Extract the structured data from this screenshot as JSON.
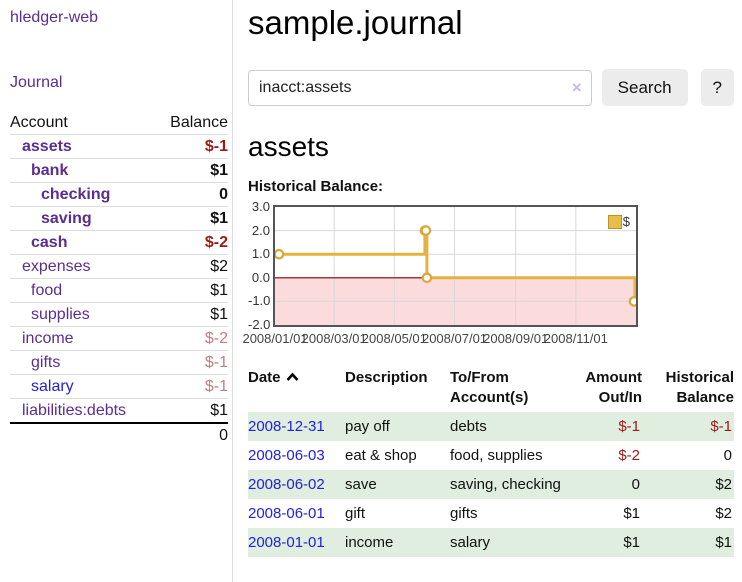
{
  "app_title": "hledger-web",
  "sidebar": {
    "journal_link": "Journal",
    "table": {
      "headers": [
        "Account",
        "Balance"
      ],
      "rows": [
        {
          "name": "assets",
          "balance": "$-1",
          "depth": 1,
          "bold": true,
          "neg": "strong"
        },
        {
          "name": "bank",
          "balance": "$1",
          "depth": 2,
          "bold": true,
          "neg": "none"
        },
        {
          "name": "checking",
          "balance": "0",
          "depth": 3,
          "bold": true,
          "neg": "none"
        },
        {
          "name": "saving",
          "balance": "$1",
          "depth": 3,
          "bold": true,
          "neg": "none"
        },
        {
          "name": "cash",
          "balance": "$-2",
          "depth": 2,
          "bold": true,
          "neg": "strong"
        },
        {
          "name": "expenses",
          "balance": "$2",
          "depth": 1,
          "bold": false,
          "neg": "none"
        },
        {
          "name": "food",
          "balance": "$1",
          "depth": 2,
          "bold": false,
          "neg": "none"
        },
        {
          "name": "supplies",
          "balance": "$1",
          "depth": 2,
          "bold": false,
          "neg": "none"
        },
        {
          "name": "income",
          "balance": "$-2",
          "depth": 1,
          "bold": false,
          "neg": "muted"
        },
        {
          "name": "gifts",
          "balance": "$-1",
          "depth": 2,
          "bold": false,
          "neg": "muted"
        },
        {
          "name": "salary",
          "balance": "$-1",
          "depth": 2,
          "bold": false,
          "neg": "muted",
          "link_style": "unvisited"
        },
        {
          "name": "liabilities:debts",
          "balance": "$1",
          "depth": 1,
          "bold": false,
          "neg": "none"
        }
      ],
      "total": "0"
    }
  },
  "main": {
    "title": "sample.journal",
    "search": {
      "value": "inacct:assets",
      "clear_icon": "×",
      "search_button": "Search",
      "help_button": "?"
    },
    "account_heading": "assets",
    "section_label": "Historical Balance:"
  },
  "chart_data": {
    "type": "line",
    "style": "step",
    "title": "Historical Balance:",
    "legend": "$",
    "legend_position": "top-right",
    "series": [
      {
        "name": "$",
        "points": [
          [
            "2008-01-01",
            1
          ],
          [
            "2008-06-01",
            2
          ],
          [
            "2008-06-02",
            2
          ],
          [
            "2008-06-03",
            0
          ],
          [
            "2008-12-31",
            -1
          ]
        ]
      }
    ],
    "x_range": [
      "2008-01-01",
      "2009-01-01"
    ],
    "x_tick_labels": [
      "2008/01/01",
      "2008/03/01",
      "2008/05/01",
      "2008/07/01",
      "2008/09/01",
      "2008/11/01"
    ],
    "y_ticks": [
      3.0,
      2.0,
      1.0,
      0.0,
      -1.0,
      -2.0
    ],
    "y_min": -2,
    "y_max": 3,
    "grid": true,
    "zero_line": true,
    "negative_region_shaded": true
  },
  "register": {
    "headers": [
      "Date",
      "Description",
      "To/From Account(s)",
      "Amount Out/In",
      "Historical Balance"
    ],
    "rows": [
      {
        "date": "2008-12-31",
        "description": "pay off",
        "accounts": "debts",
        "amount": "$-1",
        "balance": "$-1"
      },
      {
        "date": "2008-06-03",
        "description": "eat & shop",
        "accounts": "food, supplies",
        "amount": "$-2",
        "balance": "0"
      },
      {
        "date": "2008-06-02",
        "description": "save",
        "accounts": "saving, checking",
        "amount": "0",
        "balance": "$2"
      },
      {
        "date": "2008-06-01",
        "description": "gift",
        "accounts": "gifts",
        "amount": "$1",
        "balance": "$2"
      },
      {
        "date": "2008-01-01",
        "description": "income",
        "accounts": "salary",
        "amount": "$1",
        "balance": "$1"
      }
    ]
  },
  "colors": {
    "accent_purple": "#5c2d91",
    "link_blue": "#2222dd",
    "negative_red": "#9c1a1a",
    "negative_muted": "#bd7f7f",
    "row_green": "#dfeede",
    "chart_line_gold": "#e4b33f",
    "chart_negative_pink": "#fbdbdb",
    "chart_zero_line": "#8b0000"
  }
}
